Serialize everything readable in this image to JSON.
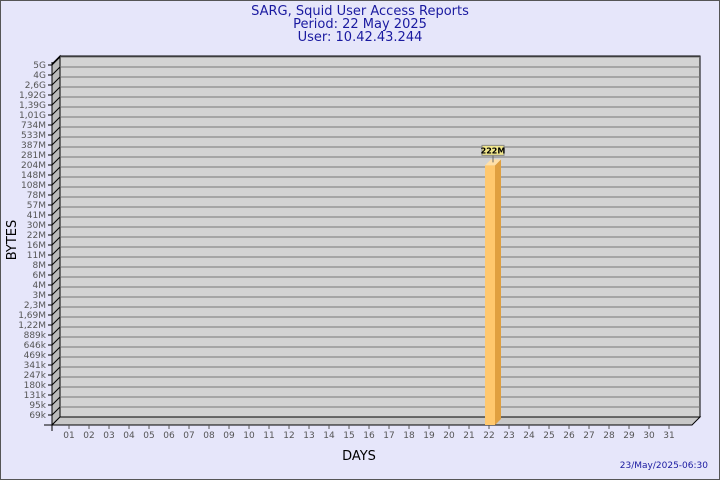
{
  "title": {
    "line1": "SARG, Squid User Access Reports",
    "line2": "Period: 22 May 2025",
    "line3": "User: 10.42.43.244"
  },
  "timestamp": "23/May/2025-06:30",
  "colors": {
    "background": "#e6e6fa",
    "plot": "#d3d3d3",
    "bar_front": "#ffc86e",
    "bar_side": "#e0a040",
    "title": "#1a1aa0"
  },
  "chart_data": {
    "type": "bar",
    "xlabel": "DAYS",
    "ylabel": "BYTES",
    "yscale": "log",
    "grid": true,
    "categories": [
      "01",
      "02",
      "03",
      "04",
      "05",
      "06",
      "07",
      "08",
      "09",
      "10",
      "11",
      "12",
      "13",
      "14",
      "15",
      "16",
      "17",
      "18",
      "19",
      "20",
      "21",
      "22",
      "23",
      "24",
      "25",
      "26",
      "27",
      "28",
      "29",
      "30",
      "31"
    ],
    "values": [
      null,
      null,
      null,
      null,
      null,
      null,
      null,
      null,
      null,
      null,
      null,
      null,
      null,
      null,
      null,
      null,
      null,
      null,
      null,
      null,
      null,
      222000000,
      null,
      null,
      null,
      null,
      null,
      null,
      null,
      null,
      null
    ],
    "data_labels": {
      "22": "222M"
    },
    "ytick_labels": [
      "5G",
      "4G",
      "2,6G",
      "1,92G",
      "1,39G",
      "1,01G",
      "734M",
      "533M",
      "387M",
      "281M",
      "204M",
      "148M",
      "108M",
      "78M",
      "57M",
      "41M",
      "30M",
      "22M",
      "16M",
      "11M",
      "8M",
      "6M",
      "4M",
      "3M",
      "2,3M",
      "1,69M",
      "1,22M",
      "889k",
      "646k",
      "469k",
      "341k",
      "247k",
      "180k",
      "131k",
      "95k",
      "69k"
    ],
    "ytick_values": [
      5000000000,
      4000000000,
      2600000000,
      1920000000,
      1390000000,
      1010000000,
      734000000,
      533000000,
      387000000,
      281000000,
      204000000,
      148000000,
      108000000,
      78000000,
      57000000,
      41000000,
      30000000,
      22000000,
      16000000,
      11000000,
      8000000,
      6000000,
      4000000,
      3000000,
      2300000,
      1690000,
      1220000,
      889000,
      646000,
      469000,
      341000,
      247000,
      180000,
      131000,
      95000,
      69000
    ]
  }
}
